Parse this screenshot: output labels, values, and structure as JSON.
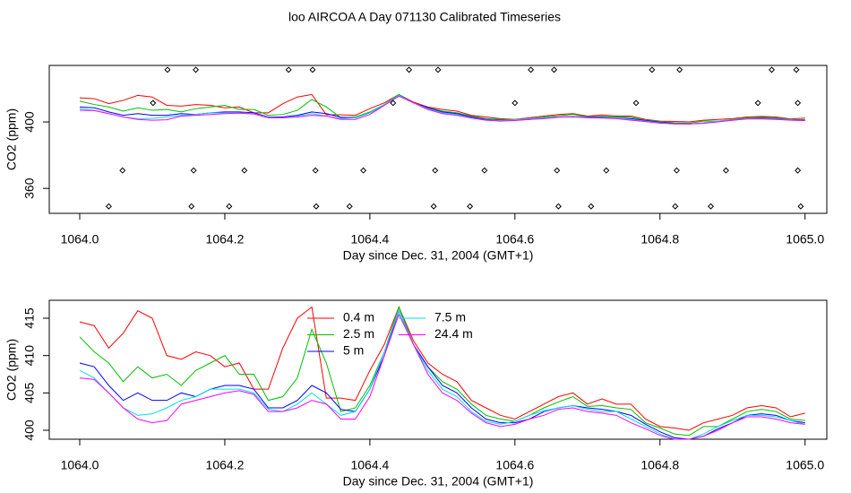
{
  "title": "loo AIRCOA A  Day 071130  Calibrated Timeseries",
  "chart_data": [
    {
      "type": "line",
      "xlabel": "Day since Dec. 31, 2004 (GMT+1)",
      "ylabel": "CO2 (ppm)",
      "xlim": [
        1063.958,
        1065.03
      ],
      "ylim": [
        345,
        434
      ],
      "xticks": [
        {
          "value": 1064,
          "label": "1064.0"
        },
        1064.2,
        1064.4,
        1064.6,
        1064.8,
        {
          "value": 1065,
          "label": "1065.0"
        }
      ],
      "yticks": [
        360,
        400
      ],
      "x": [
        1064,
        1064.02,
        1064.04,
        1064.06,
        1064.08,
        1064.1,
        1064.12,
        1064.14,
        1064.16,
        1064.18,
        1064.2,
        1064.22,
        1064.24,
        1064.26,
        1064.28,
        1064.3,
        1064.32,
        1064.34,
        1064.36,
        1064.38,
        1064.4,
        1064.42,
        1064.44,
        1064.46,
        1064.48,
        1064.5,
        1064.52,
        1064.54,
        1064.56,
        1064.58,
        1064.6,
        1064.62,
        1064.64,
        1064.66,
        1064.68,
        1064.7,
        1064.72,
        1064.74,
        1064.76,
        1064.78,
        1064.8,
        1064.82,
        1064.84,
        1064.86,
        1064.88,
        1064.9,
        1064.92,
        1064.94,
        1064.96,
        1064.98,
        1065
      ],
      "series": [
        {
          "color": "#ff0000",
          "values": [
            414.5,
            414,
            411,
            413,
            416,
            415,
            410,
            409.5,
            410.5,
            410,
            408.5,
            409,
            405.5,
            405.5,
            411,
            415,
            416.5,
            404.3,
            404.3,
            404,
            408,
            411.5,
            416.5,
            412,
            409,
            407.5,
            406.5,
            404,
            403,
            402,
            401.5,
            402.5,
            403.5,
            404.5,
            405,
            403.5,
            404.2,
            403.5,
            403.5,
            401.5,
            400.5,
            400.3,
            400,
            401,
            401.5,
            402,
            403,
            403.3,
            403,
            401.8,
            402.3
          ]
        },
        {
          "color": "#00c000",
          "values": [
            412.5,
            410.5,
            409,
            406.5,
            408.5,
            407,
            407.5,
            406,
            408,
            409,
            410,
            407.5,
            407.5,
            404,
            404.5,
            407,
            413.5,
            409,
            402.5,
            403,
            406,
            410.5,
            416.5,
            411.5,
            408.5,
            406.5,
            405.5,
            403.5,
            402,
            401.5,
            401.2,
            402,
            403,
            403.8,
            404.5,
            403.2,
            403.3,
            403,
            402.8,
            401,
            400.3,
            399.5,
            399.3,
            400.5,
            400.5,
            401.5,
            402.5,
            402.8,
            402.5,
            401.5,
            401.3
          ]
        },
        {
          "color": "#0000ff",
          "values": [
            409,
            408.5,
            406,
            404,
            405,
            404,
            404,
            405,
            404.5,
            405.5,
            406,
            406,
            405.5,
            403,
            403,
            404,
            406,
            405,
            402.8,
            402.5,
            405.5,
            410,
            416,
            411.5,
            408.5,
            406,
            405,
            403,
            401.5,
            401,
            401,
            401.5,
            402.5,
            403,
            403.3,
            403,
            402.8,
            402.5,
            402,
            400.8,
            399.8,
            399,
            398.8,
            399.2,
            400.2,
            401,
            402,
            402.2,
            402,
            401.3,
            401
          ]
        },
        {
          "color": "#00e0e0",
          "values": [
            408,
            407,
            405,
            403,
            402,
            402.2,
            403,
            404,
            404.5,
            405.5,
            405.5,
            405.5,
            405,
            402.8,
            402.5,
            403.5,
            405,
            403.5,
            402,
            402.5,
            405.5,
            410.5,
            416,
            411.5,
            408,
            405.5,
            404.5,
            402.5,
            401.2,
            400.8,
            401.2,
            402,
            402.6,
            403,
            403.3,
            402.8,
            402.5,
            402.5,
            401.5,
            400.5,
            399.5,
            398.8,
            398.8,
            399.5,
            400.5,
            401.3,
            402,
            402,
            401.8,
            401.3,
            400.8
          ]
        },
        {
          "color": "#ff00ff",
          "values": [
            407,
            406.8,
            405,
            403,
            401.5,
            401,
            401.3,
            403.5,
            404,
            404.5,
            405,
            405.3,
            404.8,
            402.5,
            402.5,
            403,
            404,
            403.5,
            401.5,
            401.5,
            404.5,
            410,
            415.5,
            411.5,
            407.5,
            405,
            404,
            402.3,
            401,
            400.5,
            400.8,
            401.5,
            402,
            402.8,
            403,
            402.5,
            402.3,
            402,
            401,
            400.2,
            399.3,
            398.8,
            398.8,
            399.2,
            400,
            401,
            401.8,
            401.8,
            401.5,
            401,
            400.8
          ]
        }
      ],
      "points": {
        "color": "#000000",
        "x": [
          1064.121,
          1064.16,
          1064.288,
          1064.321,
          1064.454,
          1064.494,
          1064.622,
          1064.654,
          1064.789,
          1064.827,
          1064.954,
          1064.988,
          1064.101,
          1064.432,
          1064.6,
          1064.767,
          1064.935,
          1064.99,
          1064.059,
          1064.157,
          1064.227,
          1064.325,
          1064.391,
          1064.49,
          1064.558,
          1064.658,
          1064.726,
          1064.823,
          1064.891,
          1064.99,
          1064.04,
          1064.154,
          1064.206,
          1064.326,
          1064.372,
          1064.488,
          1064.538,
          1064.66,
          1064.705,
          1064.821,
          1064.87,
          1064.994
        ],
        "y": [
          431.4,
          431.4,
          431.4,
          431.4,
          431.4,
          431.4,
          431.4,
          431.4,
          431.4,
          431.4,
          431.4,
          431.4,
          411.4,
          411.4,
          411.4,
          411.4,
          411.4,
          411.4,
          370.8,
          370.8,
          370.8,
          370.8,
          370.8,
          370.8,
          370.8,
          370.8,
          370.8,
          370.8,
          370.8,
          370.8,
          349.2,
          349.2,
          349.2,
          349.2,
          349.2,
          349.2,
          349.2,
          349.2,
          349.2,
          349.2,
          349.2,
          349.2
        ]
      }
    },
    {
      "type": "line",
      "xlabel": "Day since Dec. 31, 2004 (GMT+1)",
      "ylabel": "CO2 (ppm)",
      "xlim": [
        1063.958,
        1065.03
      ],
      "ylim": [
        398.8,
        417.4
      ],
      "xticks": [
        {
          "value": 1064,
          "label": "1064.0"
        },
        1064.2,
        1064.4,
        1064.6,
        1064.8,
        {
          "value": 1065,
          "label": "1065.0"
        }
      ],
      "yticks": [
        400,
        405,
        410,
        415
      ],
      "x": [
        1064,
        1064.02,
        1064.04,
        1064.06,
        1064.08,
        1064.1,
        1064.12,
        1064.14,
        1064.16,
        1064.18,
        1064.2,
        1064.22,
        1064.24,
        1064.26,
        1064.28,
        1064.3,
        1064.32,
        1064.34,
        1064.36,
        1064.38,
        1064.4,
        1064.42,
        1064.44,
        1064.46,
        1064.48,
        1064.5,
        1064.52,
        1064.54,
        1064.56,
        1064.58,
        1064.6,
        1064.62,
        1064.64,
        1064.66,
        1064.68,
        1064.7,
        1064.72,
        1064.74,
        1064.76,
        1064.78,
        1064.8,
        1064.82,
        1064.84,
        1064.86,
        1064.88,
        1064.9,
        1064.92,
        1064.94,
        1064.96,
        1064.98,
        1065
      ],
      "series": [
        {
          "name": "0.4 m",
          "color": "#ff0000",
          "values": [
            414.5,
            414,
            411,
            413,
            416,
            415,
            410,
            409.5,
            410.5,
            410,
            408.5,
            409,
            405.5,
            405.5,
            411,
            415,
            416.5,
            404.3,
            404.3,
            404,
            408,
            411.5,
            416.5,
            412,
            409,
            407.5,
            406.5,
            404,
            403,
            402,
            401.5,
            402.5,
            403.5,
            404.5,
            405,
            403.5,
            404.2,
            403.5,
            403.5,
            401.5,
            400.5,
            400.3,
            400,
            401,
            401.5,
            402,
            403,
            403.3,
            403,
            401.8,
            402.3
          ]
        },
        {
          "name": "2.5 m",
          "color": "#00c000",
          "values": [
            412.5,
            410.5,
            409,
            406.5,
            408.5,
            407,
            407.5,
            406,
            408,
            409,
            410,
            407.5,
            407.5,
            404,
            404.5,
            407,
            413.5,
            409,
            402.5,
            403,
            406,
            410.5,
            416.5,
            411.5,
            408.5,
            406.5,
            405.5,
            403.5,
            402,
            401.5,
            401.2,
            402,
            403,
            403.8,
            404.5,
            403.2,
            403.3,
            403,
            402.8,
            401,
            400.3,
            399.5,
            399.3,
            400.5,
            400.5,
            401.5,
            402.5,
            402.8,
            402.5,
            401.5,
            401.3
          ]
        },
        {
          "name": "5 m",
          "color": "#0000ff",
          "values": [
            409,
            408.5,
            406,
            404,
            405,
            404,
            404,
            405,
            404.5,
            405.5,
            406,
            406,
            405.5,
            403,
            403,
            404,
            406,
            405,
            402.8,
            402.5,
            405.5,
            410,
            416,
            411.5,
            408.5,
            406,
            405,
            403,
            401.5,
            401,
            401,
            401.5,
            402.5,
            403,
            403.3,
            403,
            402.8,
            402.5,
            402,
            400.8,
            399.8,
            399,
            398.8,
            399.2,
            400.2,
            401,
            402,
            402.2,
            402,
            401.3,
            401
          ]
        },
        {
          "name": "7.5 m",
          "color": "#00e0e0",
          "values": [
            408,
            407,
            405,
            403,
            402,
            402.2,
            403,
            404,
            404.5,
            405.5,
            405.5,
            405.5,
            405,
            402.8,
            402.5,
            403.5,
            405,
            403.5,
            402,
            402.5,
            405.5,
            410.5,
            416,
            411.5,
            408,
            405.5,
            404.5,
            402.5,
            401.2,
            400.8,
            401.2,
            402,
            402.6,
            403,
            403.3,
            402.8,
            402.5,
            402.5,
            401.5,
            400.5,
            399.5,
            398.8,
            398.8,
            399.5,
            400.5,
            401.3,
            402,
            402,
            401.8,
            401.3,
            400.8
          ]
        },
        {
          "name": "24.4 m",
          "color": "#ff00ff",
          "values": [
            407,
            406.8,
            405,
            403,
            401.5,
            401,
            401.3,
            403.5,
            404,
            404.5,
            405,
            405.3,
            404.8,
            402.5,
            402.5,
            403,
            404,
            403.5,
            401.5,
            401.5,
            404.5,
            410,
            415.5,
            411.5,
            407.5,
            405,
            404,
            402.3,
            401,
            400.5,
            400.8,
            401.5,
            402,
            402.8,
            403,
            402.5,
            402.3,
            402,
            401,
            400.2,
            399.3,
            398.8,
            398.8,
            399.2,
            400,
            401,
            401.8,
            401.8,
            401.5,
            401,
            400.8
          ]
        }
      ]
    }
  ]
}
